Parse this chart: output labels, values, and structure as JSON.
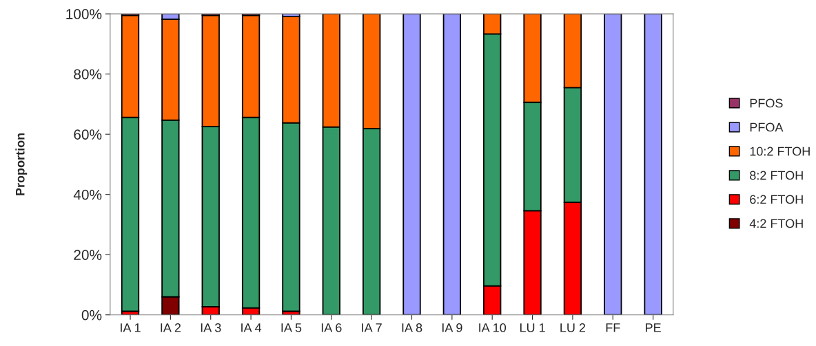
{
  "chart_data": {
    "type": "bar",
    "stacked": true,
    "ylabel": "Proportion",
    "categories": [
      "IA 1",
      "IA 2",
      "IA 3",
      "IA 4",
      "IA 5",
      "IA 6",
      "IA 7",
      "IA 8",
      "IA 9",
      "IA 10",
      "LU 1",
      "LU 2",
      "FF",
      "PE"
    ],
    "series": [
      {
        "name": "4:2 FTOH",
        "color": "#800000",
        "values": [
          0,
          6.0,
          0,
          0,
          0,
          0,
          0,
          0,
          0,
          0,
          0,
          0,
          0,
          0
        ]
      },
      {
        "name": "6:2 FTOH",
        "color": "#ff0000",
        "values": [
          1.2,
          0,
          2.7,
          2.3,
          1.2,
          0,
          0,
          0,
          0,
          9.6,
          34.6,
          37.4,
          0,
          0
        ]
      },
      {
        "name": "8:2 FTOH",
        "color": "#339966",
        "values": [
          64.4,
          58.7,
          59.9,
          63.3,
          62.6,
          62.4,
          61.9,
          0,
          0,
          83.7,
          36.0,
          38.1,
          0,
          0
        ]
      },
      {
        "name": "10:2 FTOH",
        "color": "#ff6600",
        "values": [
          33.9,
          33.5,
          36.9,
          33.9,
          35.3,
          37.6,
          38.1,
          0,
          0,
          6.7,
          29.4,
          24.5,
          0,
          0
        ]
      },
      {
        "name": "PFOA",
        "color": "#9999ff",
        "values": [
          0,
          1.8,
          0,
          0,
          0.9,
          0,
          0,
          100,
          100,
          0,
          0,
          0,
          100,
          100
        ]
      },
      {
        "name": "PFOS",
        "color": "#993366",
        "values": [
          0.5,
          0,
          0.5,
          0.5,
          0,
          0,
          0,
          0,
          0,
          0,
          0,
          0,
          0,
          0
        ]
      }
    ],
    "ylim": [
      0,
      100
    ],
    "yticks": [
      {
        "value": 0,
        "label": "0%"
      },
      {
        "value": 20,
        "label": "20%"
      },
      {
        "value": 40,
        "label": "40%"
      },
      {
        "value": 60,
        "label": "60%"
      },
      {
        "value": 80,
        "label": "80%"
      },
      {
        "value": 100,
        "label": "100%"
      }
    ],
    "legend": "right",
    "grid": false
  }
}
